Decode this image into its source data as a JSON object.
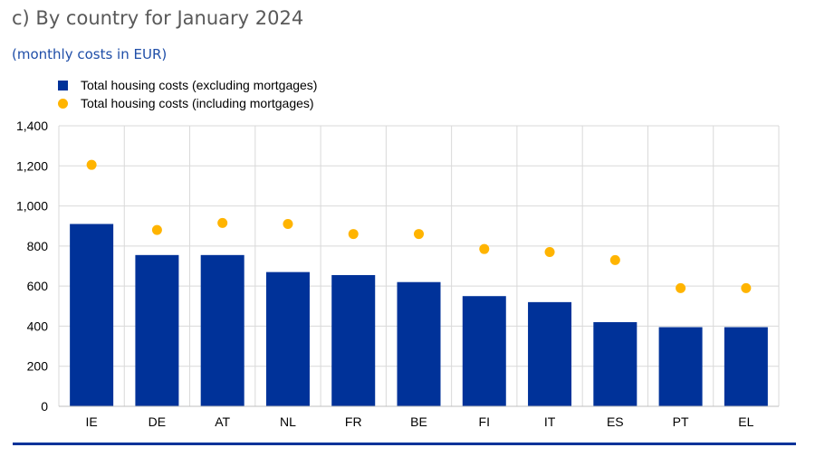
{
  "header": {
    "title": "c) By country for January 2024",
    "subtitle": "(monthly costs in EUR)"
  },
  "colors": {
    "bar": "#003299",
    "dot": "#FFB400",
    "grid": "#d9d9d9",
    "text": "#000000",
    "rule": "#003299"
  },
  "chart_data": {
    "type": "bar",
    "categories": [
      "IE",
      "DE",
      "AT",
      "NL",
      "FR",
      "BE",
      "FI",
      "IT",
      "ES",
      "PT",
      "EL"
    ],
    "series": [
      {
        "name": "Total housing costs (excluding mortgages)",
        "type": "bar",
        "values": [
          910,
          755,
          755,
          670,
          655,
          620,
          550,
          520,
          420,
          395,
          395
        ]
      },
      {
        "name": "Total housing costs (including mortgages)",
        "type": "scatter",
        "values": [
          1205,
          880,
          915,
          910,
          860,
          860,
          785,
          770,
          730,
          590,
          590
        ]
      }
    ],
    "ylim": [
      0,
      1400
    ],
    "yticks": [
      0,
      200,
      400,
      600,
      800,
      1000,
      1200,
      1400
    ],
    "ytick_labels": [
      "0",
      "200",
      "400",
      "600",
      "800",
      "1,000",
      "1,200",
      "1,400"
    ],
    "grid": true,
    "legend_position": "top-left"
  }
}
